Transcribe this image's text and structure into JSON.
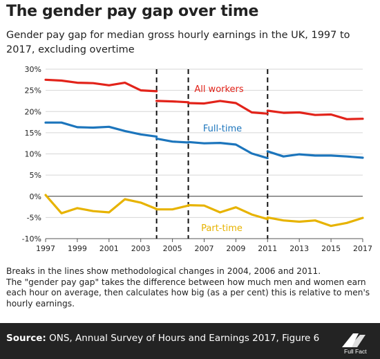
{
  "header": {
    "title": "The gender pay gap over time",
    "subtitle": "Gender pay gap for median gross hourly earnings in the UK, 1997 to 2017, excluding overtime"
  },
  "notes": {
    "line1": "Breaks in the lines show methodological  changes in 2004, 2006 and 2011.",
    "line2": "The \"gender pay gap\" takes the difference between how much men and women earn each hour on average, then calculates  how big (as a per cent) this is relative to men's hourly earnings."
  },
  "footer": {
    "source_label": "Source:",
    "source_text": " ONS, Annual Survey of Hours and Earnings 2017, Figure 6",
    "logo_text": "Full Fact"
  },
  "chart_data": {
    "type": "line",
    "ylim": [
      -10,
      30
    ],
    "xlim": [
      1997,
      2017
    ],
    "y_ticks": [
      -10,
      -5,
      0,
      5,
      10,
      15,
      20,
      25,
      30
    ],
    "y_tick_labels": [
      "-10%",
      "-5%",
      "0%",
      "5%",
      "10%",
      "15%",
      "20%",
      "25%",
      "30%"
    ],
    "x_ticks": [
      1997,
      1999,
      2001,
      2003,
      2005,
      2007,
      2009,
      2011,
      2013,
      2015,
      2017
    ],
    "grid": true,
    "breaks": [
      2004,
      2006,
      2011
    ],
    "series": [
      {
        "name": "All workers",
        "color": "#e2231a",
        "segments": [
          [
            [
              1997,
              27.5
            ],
            [
              1998,
              27.3
            ],
            [
              1999,
              26.8
            ],
            [
              2000,
              26.7
            ],
            [
              2001,
              26.2
            ],
            [
              2002,
              26.8
            ],
            [
              2003,
              25.0
            ],
            [
              2004,
              24.8
            ]
          ],
          [
            [
              2004,
              22.5
            ],
            [
              2005,
              22.4
            ],
            [
              2006,
              22.2
            ]
          ],
          [
            [
              2006,
              22.0
            ],
            [
              2007,
              21.9
            ],
            [
              2008,
              22.5
            ],
            [
              2009,
              22.0
            ],
            [
              2010,
              19.8
            ],
            [
              2011,
              19.5
            ]
          ],
          [
            [
              2011,
              20.2
            ],
            [
              2012,
              19.7
            ],
            [
              2013,
              19.8
            ],
            [
              2014,
              19.2
            ],
            [
              2015,
              19.3
            ],
            [
              2016,
              18.2
            ],
            [
              2017,
              18.3
            ]
          ]
        ]
      },
      {
        "name": "Full-time",
        "color": "#1c75bc",
        "segments": [
          [
            [
              1997,
              17.4
            ],
            [
              1998,
              17.4
            ],
            [
              1999,
              16.3
            ],
            [
              2000,
              16.2
            ],
            [
              2001,
              16.4
            ],
            [
              2002,
              15.4
            ],
            [
              2003,
              14.6
            ],
            [
              2004,
              14.1
            ]
          ],
          [
            [
              2004,
              13.6
            ],
            [
              2005,
              12.9
            ],
            [
              2006,
              12.7
            ]
          ],
          [
            [
              2006,
              12.8
            ],
            [
              2007,
              12.5
            ],
            [
              2008,
              12.6
            ],
            [
              2009,
              12.2
            ],
            [
              2010,
              10.1
            ],
            [
              2011,
              9.0
            ]
          ],
          [
            [
              2011,
              10.6
            ],
            [
              2012,
              9.4
            ],
            [
              2013,
              9.9
            ],
            [
              2014,
              9.6
            ],
            [
              2015,
              9.6
            ],
            [
              2016,
              9.4
            ],
            [
              2017,
              9.1
            ]
          ]
        ]
      },
      {
        "name": "Part-time",
        "color": "#e7b300",
        "segments": [
          [
            [
              1997,
              0.3
            ],
            [
              1998,
              -4.0
            ],
            [
              1999,
              -2.8
            ],
            [
              2000,
              -3.5
            ],
            [
              2001,
              -3.8
            ],
            [
              2002,
              -0.7
            ],
            [
              2003,
              -1.5
            ],
            [
              2004,
              -3.0
            ]
          ],
          [
            [
              2004,
              -3.1
            ],
            [
              2005,
              -3.1
            ],
            [
              2006,
              -2.2
            ]
          ],
          [
            [
              2006,
              -2.1
            ],
            [
              2007,
              -2.2
            ],
            [
              2008,
              -3.8
            ],
            [
              2009,
              -2.6
            ],
            [
              2010,
              -4.3
            ],
            [
              2011,
              -5.4
            ]
          ],
          [
            [
              2011,
              -5.0
            ],
            [
              2012,
              -5.7
            ],
            [
              2013,
              -6.0
            ],
            [
              2014,
              -5.7
            ],
            [
              2015,
              -7.0
            ],
            [
              2016,
              -6.3
            ],
            [
              2017,
              -5.1
            ]
          ]
        ]
      }
    ]
  }
}
